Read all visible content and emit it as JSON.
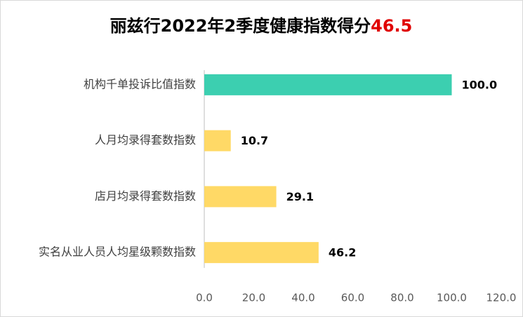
{
  "chart_data": {
    "type": "bar",
    "orientation": "horizontal",
    "title": "丽兹行2022年2季度健康指数得分",
    "title_highlight": "46.5",
    "title_highlight_color": "#e00000",
    "categories": [
      "机构千单投诉比值指数",
      "人月均录得套数指数",
      "店月均录得套数指数",
      "实名从业人员人均星级颗数指数"
    ],
    "values": [
      100,
      10.7,
      29.1,
      46.2
    ],
    "value_labels": [
      "100.0",
      "10.7",
      "29.1",
      "46.2"
    ],
    "colors": [
      "#3ccfb0",
      "#ffd966",
      "#ffd966",
      "#ffd966"
    ],
    "xlim": [
      0,
      120
    ],
    "xticks": [
      {
        "value": 0,
        "label": "0.0"
      },
      {
        "value": 20,
        "label": "20.0"
      },
      {
        "value": 40,
        "label": "40.0"
      },
      {
        "value": 60,
        "label": "60.0"
      },
      {
        "value": 80,
        "label": "80.0"
      },
      {
        "value": 100,
        "label": "100.0"
      },
      {
        "value": 120,
        "label": "120.0"
      }
    ],
    "grid": false
  }
}
